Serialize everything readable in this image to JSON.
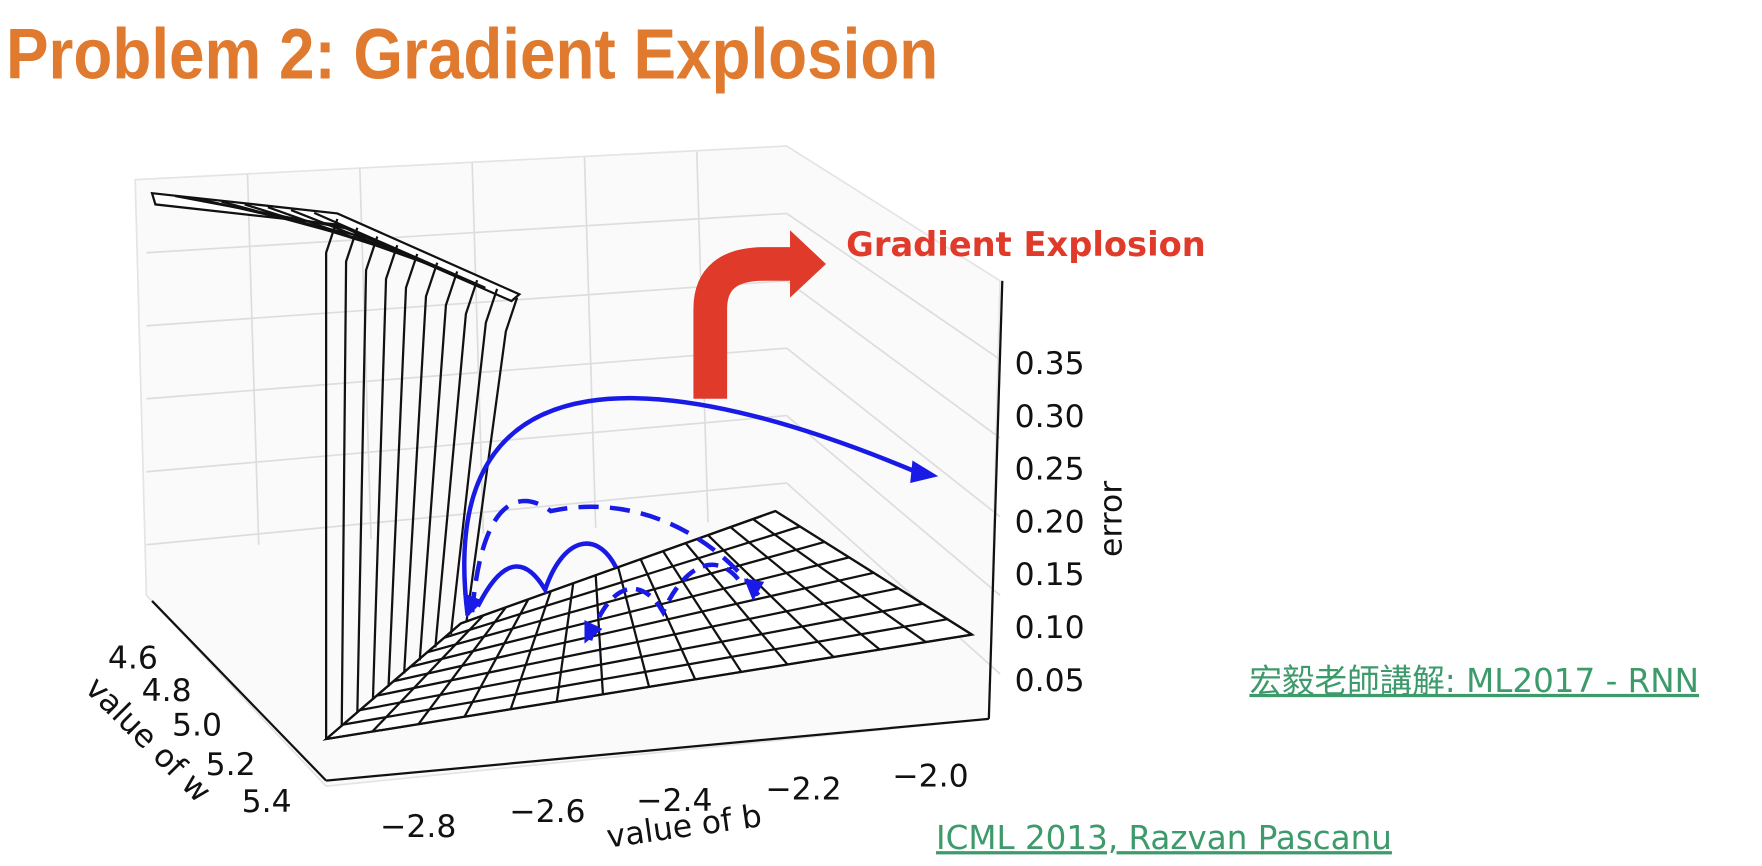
{
  "title": "Problem 2: Gradient Explosion",
  "figure": {
    "annotation": "Gradient Explosion",
    "z_axis": {
      "label": "error",
      "ticks": [
        "0.35",
        "0.30",
        "0.25",
        "0.20",
        "0.15",
        "0.10",
        "0.05"
      ]
    },
    "x_axis": {
      "label": "value of b",
      "ticks": [
        "−2.8",
        "−2.6",
        "−2.4",
        "−2.2",
        "−2.0"
      ]
    },
    "y_axis": {
      "label": "value of w",
      "ticks": [
        "4.6",
        "4.8",
        "5.0",
        "5.2",
        "5.4"
      ]
    }
  },
  "links": [
    "宏毅老師講解: ML2017 - RNN",
    "ICML 2013, Razvan Pascanu"
  ]
}
